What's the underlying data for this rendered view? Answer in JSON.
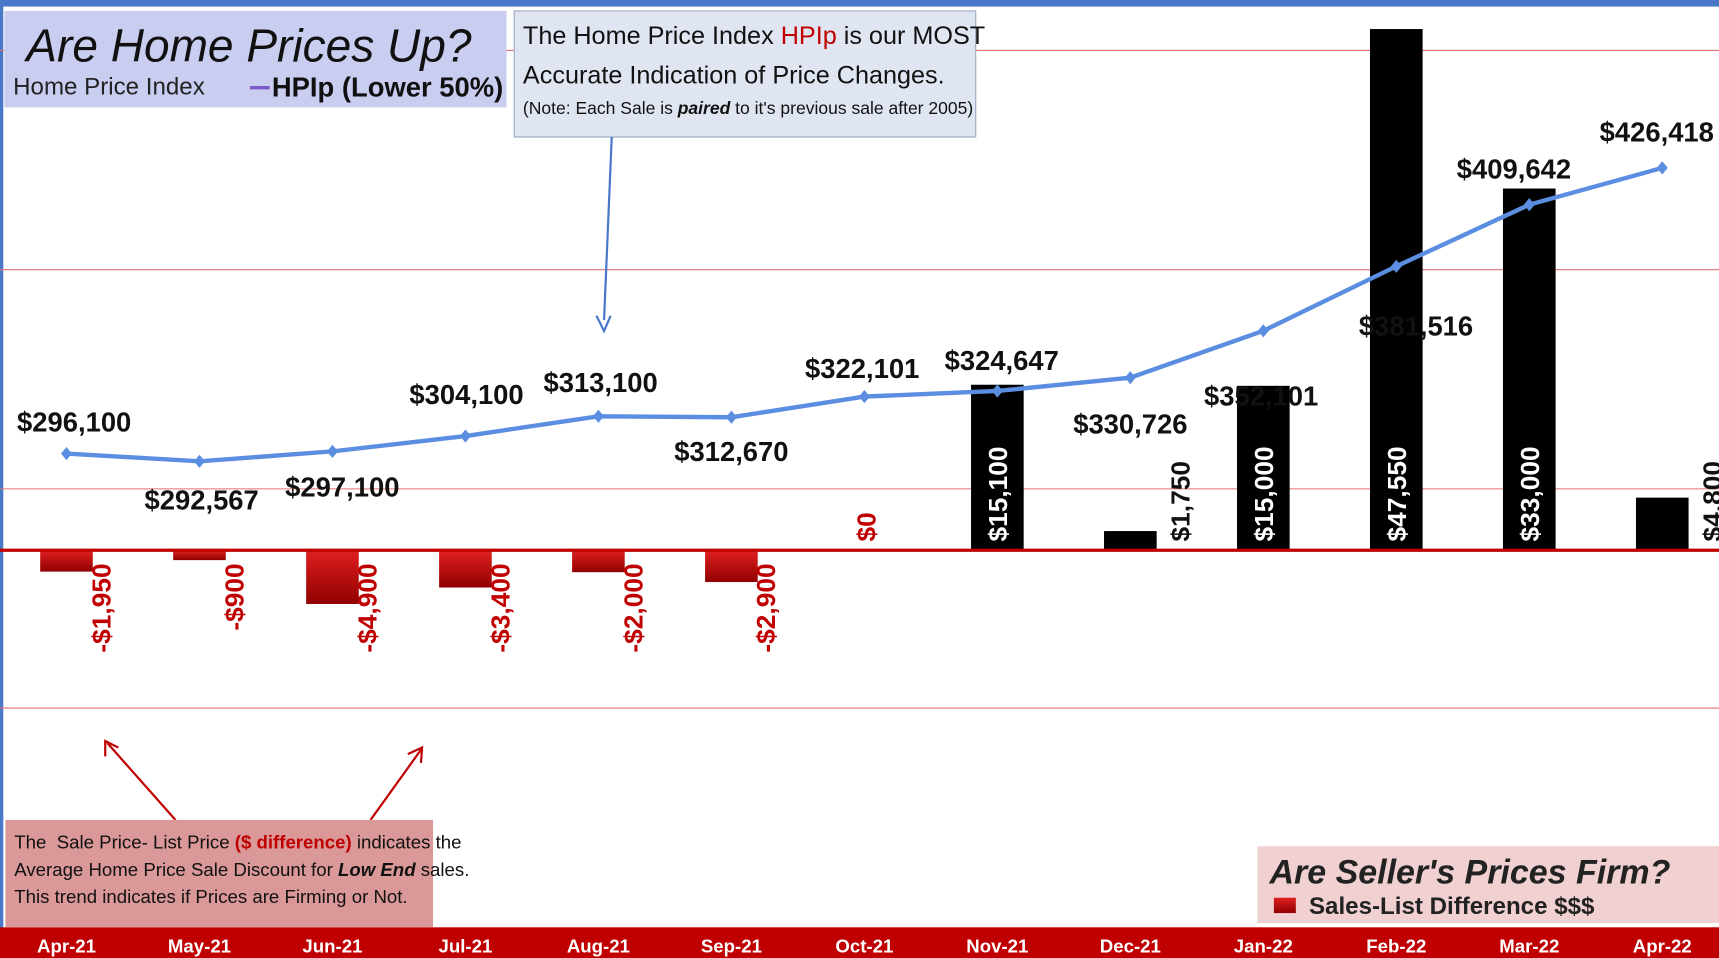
{
  "chart_data": {
    "type": "bar_line",
    "title": "Are Home Prices Up?",
    "legend_title": "Home Price Index",
    "legend2_title": "Are Seller's Prices Firm?",
    "categories": [
      "Apr-21",
      "May-21",
      "Jun-21",
      "Jul-21",
      "Aug-21",
      "Sep-21",
      "Oct-21",
      "Nov-21",
      "Dec-21",
      "Jan-22",
      "Feb-22",
      "Mar-22",
      "Apr-22"
    ],
    "series": [
      {
        "name": "Sales-List Difference $$$",
        "type": "bar",
        "color": "#c00000",
        "positive_color": "#000000",
        "values": [
          -1950,
          -900,
          -4900,
          -3400,
          -2000,
          -2900,
          0,
          15100,
          1750,
          15000,
          47550,
          33000,
          4800
        ],
        "value_labels": [
          "-$1,950",
          "-$900",
          "-$4,900",
          "-$3,400",
          "-$2,000",
          "-$2,900",
          "$0",
          "$15,100",
          "$1,750",
          "$15,000",
          "$47,550",
          "$33,000",
          "$4,800"
        ]
      },
      {
        "name": "HPIp (Lower 50%)",
        "type": "line",
        "axis": "y2",
        "color": "#5b8ee0",
        "values": [
          296100,
          292567,
          297100,
          304100,
          313100,
          312670,
          322101,
          324647,
          330726,
          352101,
          381516,
          409642,
          426418
        ],
        "value_labels": [
          "$296,100",
          "$292,567",
          "$297,100",
          "$304,100",
          "$313,100",
          "$312,670",
          "$322,101",
          "$324,647",
          "$330,726",
          "$352,101",
          "$381,516",
          "$409,642",
          "$426,418"
        ]
      }
    ],
    "ylim": [
      -34400,
      50200
    ],
    "y2lim": [
      80000,
      503000
    ],
    "annotations": {
      "top": [
        "The Home Price Index ",
        "HPIp",
        " is our MOST",
        "Accurate Indication of Price Changes.",
        "(Note: Each Sale is ",
        "paired",
        " to it's previous sale after 2005)"
      ],
      "bottom": [
        "The  Sale Price- List Price ",
        "($ difference)",
        " indicates the",
        "Average Home Price Sale Discount for ",
        "Low End",
        " sales.",
        "This trend indicates if Prices are Firming or Not."
      ]
    }
  }
}
